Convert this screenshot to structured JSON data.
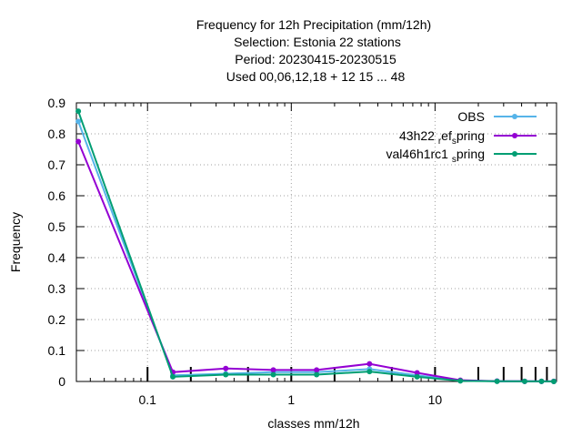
{
  "chart_data": {
    "type": "line",
    "title_lines": [
      "Frequency  for 12h Precipitation (mm/12h)",
      "Selection: Estonia      22 stations",
      "Period: 20230415-20230515",
      "Used  00,06,12,18  + 12 15 ... 48"
    ],
    "xlabel": "classes mm/12h",
    "ylabel": "Frequency",
    "x_scale": "log",
    "xlim": [
      0.032,
      70
    ],
    "ylim": [
      0,
      0.9
    ],
    "x_ticks": [
      {
        "value": 0.1,
        "label": "0.1"
      },
      {
        "value": 1,
        "label": "1"
      },
      {
        "value": 10,
        "label": "10"
      }
    ],
    "y_ticks": [
      {
        "value": 0,
        "label": "0"
      },
      {
        "value": 0.1,
        "label": "0.1"
      },
      {
        "value": 0.2,
        "label": "0.2"
      },
      {
        "value": 0.3,
        "label": "0.3"
      },
      {
        "value": 0.4,
        "label": "0.4"
      },
      {
        "value": 0.5,
        "label": "0.5"
      },
      {
        "value": 0.6,
        "label": "0.6"
      },
      {
        "value": 0.7,
        "label": "0.7"
      },
      {
        "value": 0.8,
        "label": "0.8"
      },
      {
        "value": 0.9,
        "label": "0.9"
      }
    ],
    "class_marks": [
      0.1,
      0.2,
      0.5,
      1,
      2,
      5,
      10,
      20,
      30,
      40,
      50,
      60
    ],
    "grid": true,
    "legend_position": "top-right",
    "x": [
      0.033,
      0.15,
      0.35,
      0.75,
      1.5,
      3.5,
      7.5,
      15,
      27,
      42,
      55,
      67
    ],
    "series": [
      {
        "name": "OBS",
        "color": "#56b4e9",
        "values": [
          0.84,
          0.02,
          0.025,
          0.03,
          0.03,
          0.04,
          0.02,
          0.003,
          0.001,
          0.0005,
          0.0003,
          0.0002
        ]
      },
      {
        "name": "43h22 ref spring",
        "label_parts": {
          "a": "43h22 ",
          "sub1": "r",
          "b": "ef",
          "sub2": "s",
          "c": "pring"
        },
        "color": "#9400d3",
        "values": [
          0.775,
          0.03,
          0.042,
          0.037,
          0.037,
          0.057,
          0.028,
          0.004,
          0.001,
          0.0005,
          0.0003,
          0.0002
        ]
      },
      {
        "name": "val46h1rc1 spring",
        "label_parts": {
          "a": "val46h1rc1 ",
          "sub1": "s",
          "c": "pring"
        },
        "color": "#009e73",
        "values": [
          0.873,
          0.015,
          0.022,
          0.022,
          0.022,
          0.032,
          0.015,
          0.002,
          0.0005,
          0.0003,
          0.0002,
          0.0001
        ]
      }
    ]
  }
}
